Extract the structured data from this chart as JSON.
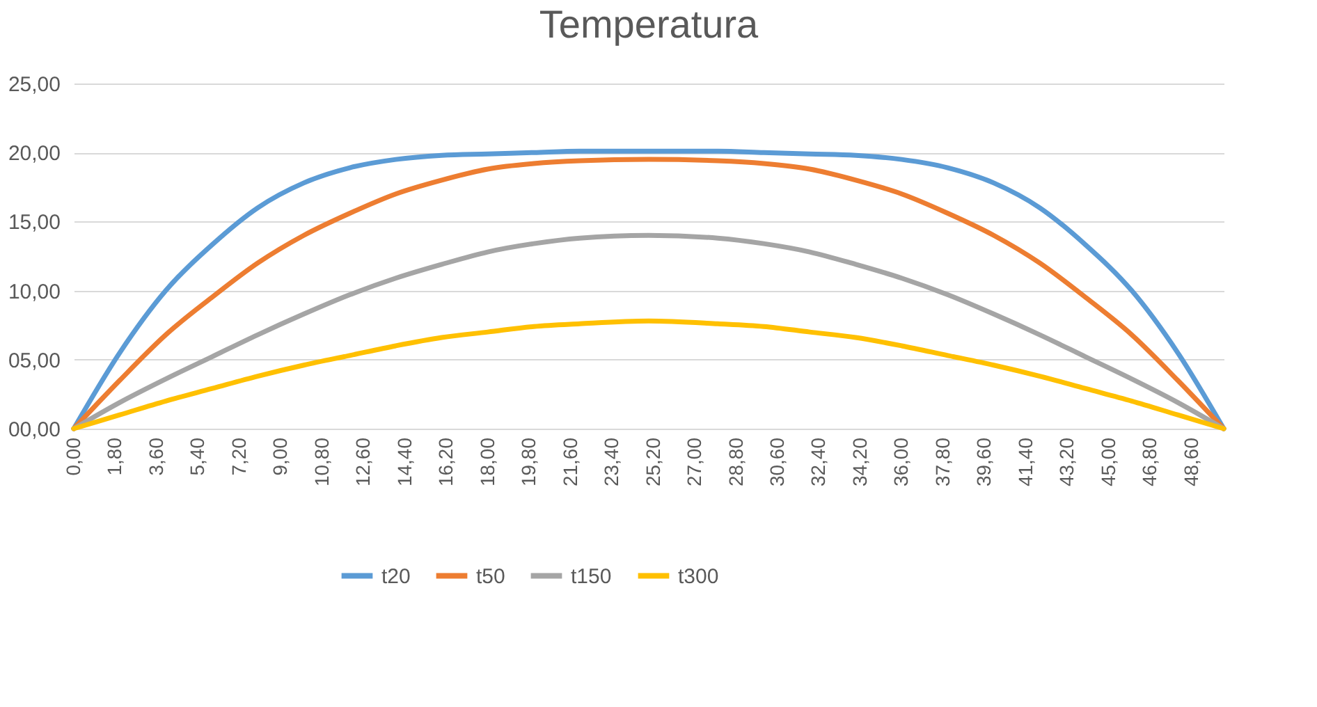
{
  "chart_data": {
    "type": "line",
    "title": "Temperatura",
    "x": [
      0,
      2,
      4,
      6,
      8,
      10,
      12,
      14,
      16,
      18,
      20,
      22,
      25,
      28,
      30,
      32,
      34,
      36,
      38,
      40,
      42,
      44,
      46,
      48,
      50
    ],
    "series": [
      {
        "name": "t20",
        "color": "#5b9bd5",
        "values": [
          0,
          5.5,
          10,
          13.3,
          16,
          17.8,
          18.9,
          19.5,
          19.8,
          19.9,
          20,
          20.1,
          20.1,
          20.1,
          20,
          19.9,
          19.8,
          19.5,
          18.9,
          17.8,
          16,
          13.3,
          10,
          5.5,
          0
        ]
      },
      {
        "name": "t50",
        "color": "#ed7d31",
        "values": [
          0,
          3.5,
          6.8,
          9.5,
          12,
          14,
          15.6,
          17,
          18,
          18.8,
          19.2,
          19.4,
          19.5,
          19.4,
          19.2,
          18.8,
          18,
          17,
          15.6,
          14,
          12,
          9.5,
          6.8,
          3.5,
          0
        ]
      },
      {
        "name": "t150",
        "color": "#a5a5a5",
        "values": [
          0,
          1.9,
          3.6,
          5.2,
          6.8,
          8.3,
          9.7,
          10.9,
          11.9,
          12.8,
          13.4,
          13.8,
          14,
          13.8,
          13.4,
          12.8,
          11.9,
          10.9,
          9.7,
          8.3,
          6.8,
          5.2,
          3.6,
          1.9,
          0
        ]
      },
      {
        "name": "t300",
        "color": "#ffc000",
        "values": [
          0,
          1.0,
          2.0,
          2.9,
          3.8,
          4.6,
          5.3,
          6.0,
          6.6,
          7.0,
          7.4,
          7.6,
          7.8,
          7.6,
          7.4,
          7.0,
          6.6,
          6.0,
          5.3,
          4.6,
          3.8,
          2.9,
          2.0,
          1.0,
          0
        ]
      }
    ],
    "xlim": [
      0,
      50
    ],
    "xticks": [
      {
        "value": 0,
        "label": "0,00"
      },
      {
        "value": 1.8,
        "label": "1,80"
      },
      {
        "value": 3.6,
        "label": "3,60"
      },
      {
        "value": 5.4,
        "label": "5,40"
      },
      {
        "value": 7.2,
        "label": "7,20"
      },
      {
        "value": 9,
        "label": "9,00"
      },
      {
        "value": 10.8,
        "label": "10,80"
      },
      {
        "value": 12.6,
        "label": "12,60"
      },
      {
        "value": 14.4,
        "label": "14,40"
      },
      {
        "value": 16.2,
        "label": "16,20"
      },
      {
        "value": 18,
        "label": "18,00"
      },
      {
        "value": 19.8,
        "label": "19,80"
      },
      {
        "value": 21.6,
        "label": "21,60"
      },
      {
        "value": 23.4,
        "label": "23,40"
      },
      {
        "value": 25.2,
        "label": "25,20"
      },
      {
        "value": 27,
        "label": "27,00"
      },
      {
        "value": 28.8,
        "label": "28,80"
      },
      {
        "value": 30.6,
        "label": "30,60"
      },
      {
        "value": 32.4,
        "label": "32,40"
      },
      {
        "value": 34.2,
        "label": "34,20"
      },
      {
        "value": 36,
        "label": "36,00"
      },
      {
        "value": 37.8,
        "label": "37,80"
      },
      {
        "value": 39.6,
        "label": "39,60"
      },
      {
        "value": 41.4,
        "label": "41,40"
      },
      {
        "value": 43.2,
        "label": "43,20"
      },
      {
        "value": 45,
        "label": "45,00"
      },
      {
        "value": 46.8,
        "label": "46,80"
      },
      {
        "value": 48.6,
        "label": "48,60"
      }
    ],
    "ylim": [
      0,
      25
    ],
    "yticks": [
      {
        "value": 0,
        "label": "00,00"
      },
      {
        "value": 5,
        "label": "05,00"
      },
      {
        "value": 10,
        "label": "10,00"
      },
      {
        "value": 15,
        "label": "15,00"
      },
      {
        "value": 20,
        "label": "20,00"
      },
      {
        "value": 25,
        "label": "25,00"
      }
    ],
    "grid": "y",
    "legend": "bottom",
    "marker": "none",
    "line_style": "solid"
  }
}
